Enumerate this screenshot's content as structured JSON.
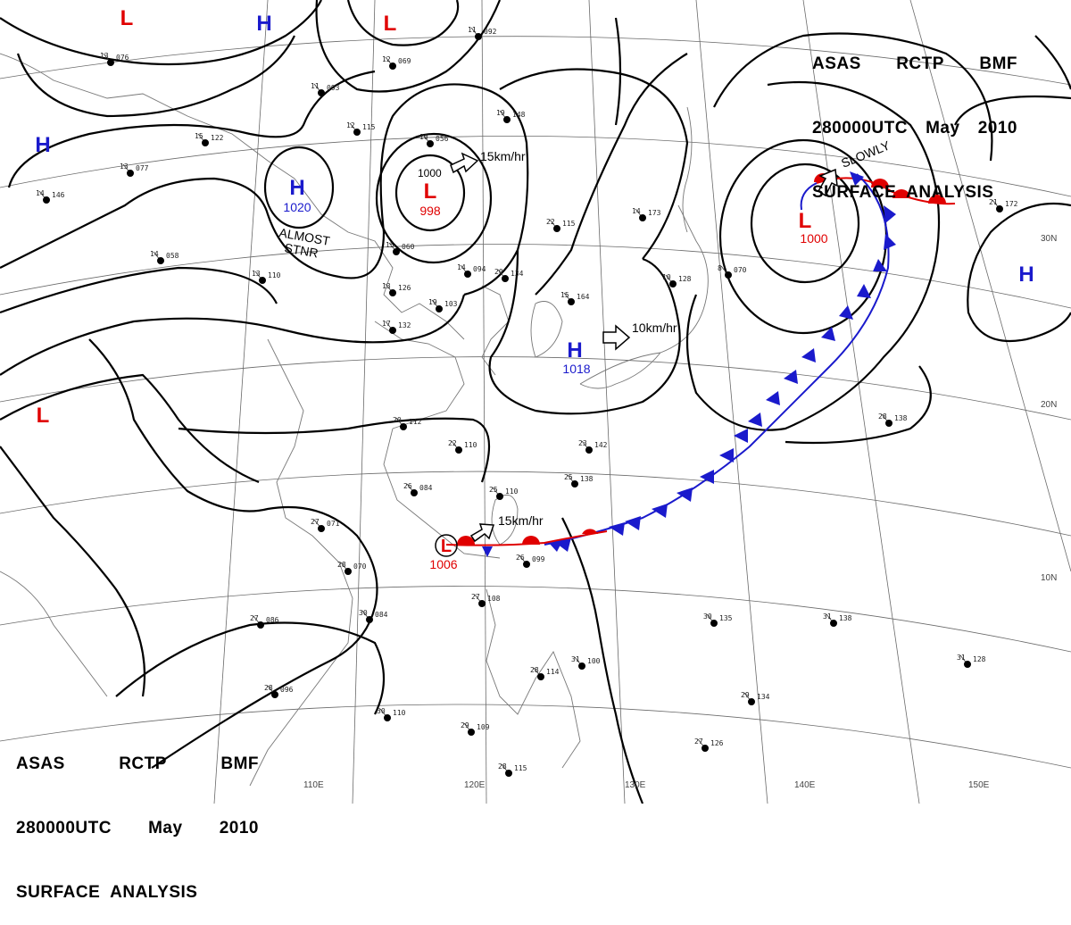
{
  "header": {
    "line1": [
      "ASAS",
      "RCTP",
      "BMF"
    ],
    "line2": [
      "280000UTC",
      "May",
      "2010"
    ],
    "line3": "SURFACE  ANALYSIS"
  },
  "colors": {
    "high": "#1a1acc",
    "low": "#e00000",
    "cold_front": "#1a1acc",
    "warm_front": "#e00000",
    "isobar": "#000000",
    "grid": "#555555"
  },
  "lon_labels": [
    "110E",
    "120E",
    "130E",
    "140E",
    "150E"
  ],
  "lat_labels": [
    "30N",
    "20N",
    "10N"
  ],
  "pressure_centers": [
    {
      "type": "L",
      "value": ""
    },
    {
      "type": "H",
      "value": ""
    },
    {
      "type": "L",
      "value": ""
    },
    {
      "type": "H",
      "value": ""
    },
    {
      "type": "H",
      "value": "1020"
    },
    {
      "type": "L",
      "value": "998"
    },
    {
      "type": "H",
      "value": "1018"
    },
    {
      "type": "L",
      "value": "1000"
    },
    {
      "type": "H",
      "value": ""
    },
    {
      "type": "L",
      "value": ""
    },
    {
      "type": "L",
      "value": "1006"
    }
  ],
  "isobar_labels": [
    "1000"
  ],
  "annotations": {
    "almost_stnr_1": "ALMOST",
    "almost_stnr_2": "STNR",
    "motion_1": "15km/hr",
    "motion_2": "10km/hr",
    "motion_3": "15km/hr",
    "motion_4": "SLOWLY"
  },
  "station_obs": [
    {
      "t": "13",
      "p": "076"
    },
    {
      "t": "11",
      "p": "092"
    },
    {
      "t": "12",
      "p": "069"
    },
    {
      "t": "11",
      "p": "093"
    },
    {
      "t": "15",
      "p": "122"
    },
    {
      "t": "12",
      "p": "115"
    },
    {
      "t": "10",
      "p": "056"
    },
    {
      "t": "19",
      "p": "148"
    },
    {
      "t": "13",
      "p": "077"
    },
    {
      "t": "14",
      "p": "146"
    },
    {
      "t": "14",
      "p": "058"
    },
    {
      "t": "15",
      "p": "060"
    },
    {
      "t": "14",
      "p": "094"
    },
    {
      "t": "20",
      "p": "134"
    },
    {
      "t": "22",
      "p": "115"
    },
    {
      "t": "14",
      "p": "173"
    },
    {
      "t": "13",
      "p": "110"
    },
    {
      "t": "13",
      "p": "126"
    },
    {
      "t": "19",
      "p": "103"
    },
    {
      "t": "17",
      "p": "132"
    },
    {
      "t": "15",
      "p": "164"
    },
    {
      "t": "10",
      "p": "128"
    },
    {
      "t": "8",
      "p": "070"
    },
    {
      "t": "20",
      "p": "112"
    },
    {
      "t": "22",
      "p": "110"
    },
    {
      "t": "23",
      "p": "142"
    },
    {
      "t": "26",
      "p": "084"
    },
    {
      "t": "25",
      "p": "138"
    },
    {
      "t": "25",
      "p": "110"
    },
    {
      "t": "27",
      "p": "071"
    },
    {
      "t": "28",
      "p": "070"
    },
    {
      "t": "30",
      "p": "084"
    },
    {
      "t": "27",
      "p": "086"
    },
    {
      "t": "26",
      "p": "099"
    },
    {
      "t": "27",
      "p": "108"
    },
    {
      "t": "28",
      "p": "114"
    },
    {
      "t": "31",
      "p": "100"
    },
    {
      "t": "30",
      "p": "135"
    },
    {
      "t": "31",
      "p": "138"
    },
    {
      "t": "28",
      "p": "096"
    },
    {
      "t": "30",
      "p": "110"
    },
    {
      "t": "29",
      "p": "109"
    },
    {
      "t": "28",
      "p": "115"
    },
    {
      "t": "27",
      "p": "126"
    },
    {
      "t": "29",
      "p": "134"
    },
    {
      "t": "31",
      "p": "128"
    },
    {
      "t": "21",
      "p": "172"
    },
    {
      "t": "28",
      "p": "138"
    }
  ]
}
